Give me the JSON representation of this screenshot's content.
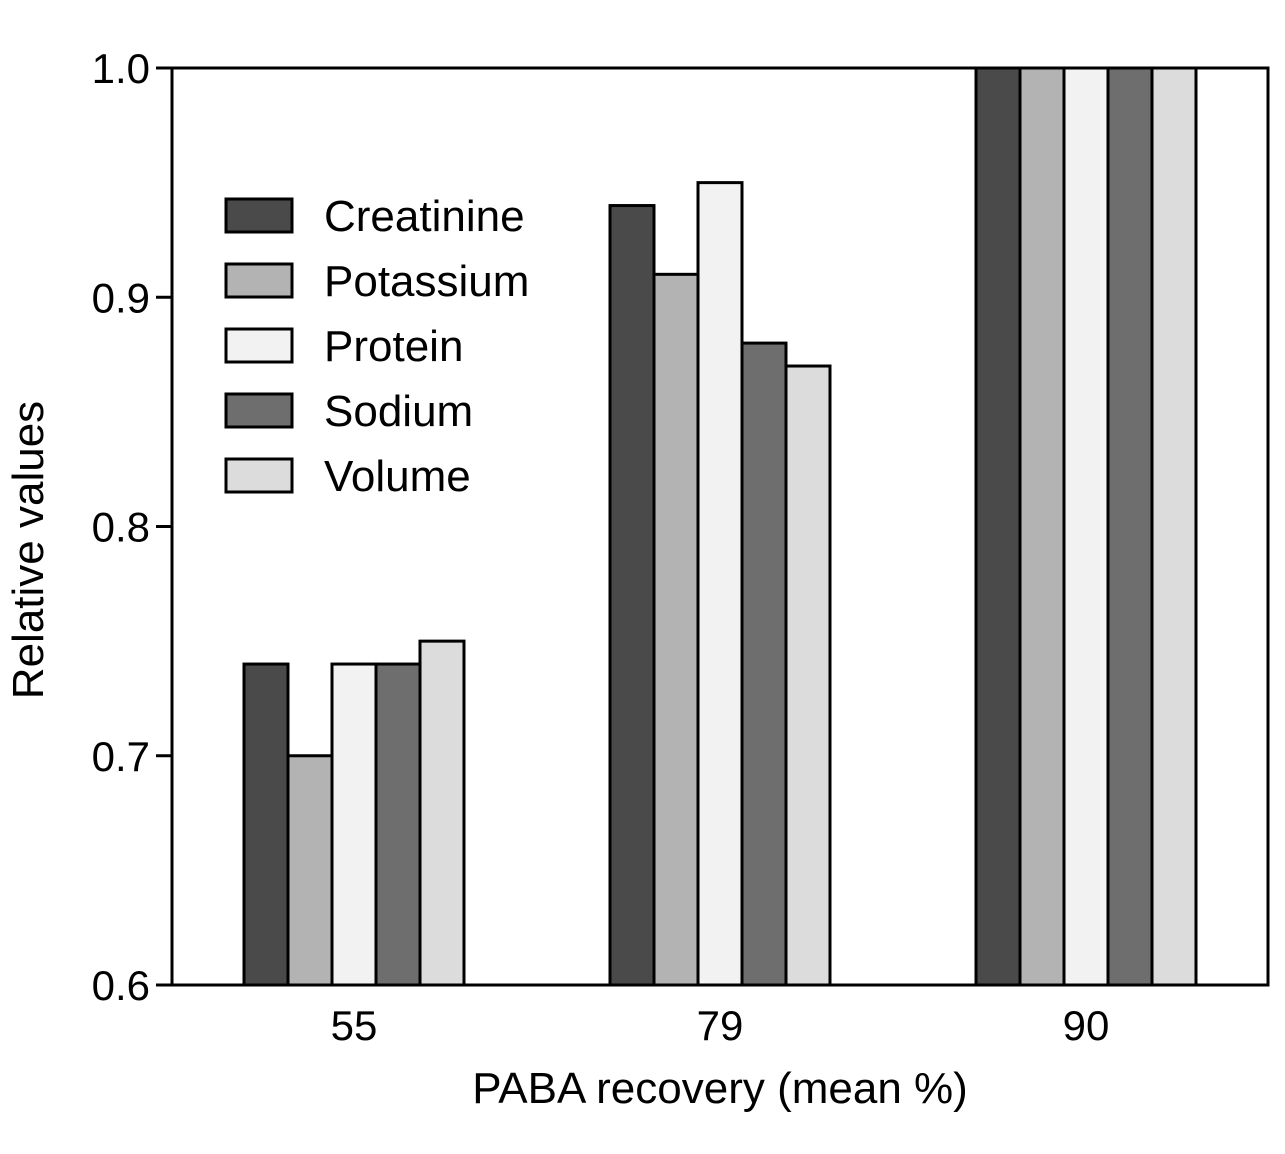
{
  "chart_data": {
    "type": "bar",
    "title": "",
    "xlabel": "PABA recovery (mean %)",
    "ylabel": "Relative values",
    "categories": [
      "55",
      "79",
      "90"
    ],
    "ylim": [
      0.6,
      1.0
    ],
    "yticks": [
      "0.6",
      "0.7",
      "0.8",
      "0.9",
      "1.0"
    ],
    "grid": false,
    "legend_position": "top-left",
    "series": [
      {
        "name": "Creatinine",
        "color": "#4a4a4a",
        "values": [
          0.74,
          0.94,
          1.0
        ]
      },
      {
        "name": "Potassium",
        "color": "#b3b3b3",
        "values": [
          0.7,
          0.91,
          1.0
        ]
      },
      {
        "name": "Protein",
        "color": "#f2f2f2",
        "values": [
          0.74,
          0.95,
          1.0
        ]
      },
      {
        "name": "Sodium",
        "color": "#6e6e6e",
        "values": [
          0.74,
          0.88,
          1.0
        ]
      },
      {
        "name": "Volume",
        "color": "#dcdcdc",
        "values": [
          0.75,
          0.87,
          1.0
        ]
      }
    ]
  }
}
